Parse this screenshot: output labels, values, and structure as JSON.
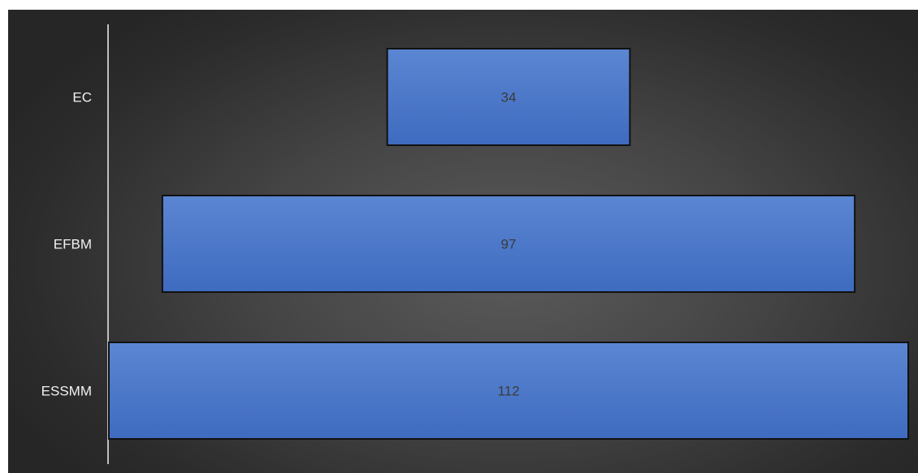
{
  "chart_data": {
    "type": "bar",
    "orientation": "horizontal",
    "categories": [
      "EC",
      "EFBM",
      "ESSMM"
    ],
    "values": [
      34,
      97,
      112
    ],
    "data_labels": [
      "34",
      "97",
      "112"
    ],
    "bar_alignment": "centered",
    "title": "",
    "xlabel": "",
    "ylabel": "",
    "xlim": [
      0,
      112
    ],
    "grid": false,
    "legend": "none",
    "colors": {
      "bar_fill": "#4472c4",
      "bar_stroke": "#111111",
      "background": "#3a3a3a",
      "axis_line": "#bfbfbf",
      "category_text": "#f2f2f2",
      "value_text": "#3b3b3b"
    }
  }
}
